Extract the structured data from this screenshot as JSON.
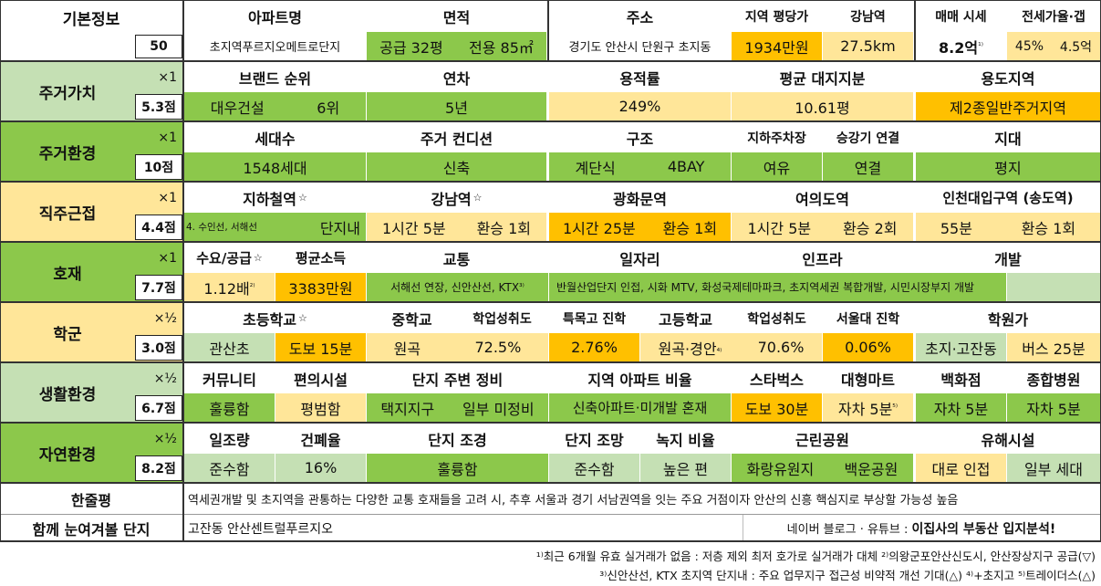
{
  "basic": {
    "label": "기본정보",
    "score": "50",
    "apt_header": "아파트명",
    "apt_name": "초지역푸르지오메트로단지",
    "area_header": "면적",
    "area_supply": "공급 32평",
    "area_private": "전용 85㎡",
    "addr_header": "주소",
    "addr_value": "경기도 안산시 단원구 초지동",
    "ppy_header": "지역 평당가",
    "ppy_value": "1934만원",
    "gangnam_header": "강남역",
    "gangnam_value": "27.5km",
    "price_header": "매매 시세",
    "price_value": "8.2억",
    "price_note": "¹⁾",
    "jeonse_header": "전세가율·갭",
    "jeonse_rate": "45%",
    "jeonse_gap": "4.5억"
  },
  "value": {
    "label": "주거가치",
    "mult": "×1",
    "score": "5.3점",
    "brand_header": "브랜드 순위",
    "brand_name": "대우건설",
    "brand_rank": "6위",
    "age_header": "연차",
    "age_value": "5년",
    "far_header": "용적률",
    "far_value": "249%",
    "land_header": "평균 대지지분",
    "land_value": "10.61평",
    "zone_header": "용도지역",
    "zone_value": "제2종일반주거지역"
  },
  "env": {
    "label": "주거환경",
    "mult": "×1",
    "score": "10점",
    "hh_header": "세대수",
    "hh_value": "1548세대",
    "cond_header": "주거 컨디션",
    "cond_value": "신축",
    "struct_header": "구조",
    "struct_a": "계단식",
    "struct_b": "4BAY",
    "park_header": "지하주차장",
    "park_value": "여유",
    "elev_header": "승강기 연결",
    "elev_value": "연결",
    "terrain_header": "지대",
    "terrain_value": "평지"
  },
  "commute": {
    "label": "직주근접",
    "mult": "×1",
    "score": "4.4점",
    "subway_header": "지하철역",
    "subway_lines": "4. 수인선, 서해선",
    "subway_value": "단지내",
    "gangnam_header": "강남역",
    "gangnam_time": "1시간 5분",
    "gangnam_transfer": "환승 1회",
    "gwanghwa_header": "광화문역",
    "gwanghwa_time": "1시간 25분",
    "gwanghwa_transfer": "환승 1회",
    "yeouido_header": "여의도역",
    "yeouido_time": "1시간 5분",
    "yeouido_transfer": "환승 2회",
    "incheon_header": "인천대입구역 (송도역)",
    "incheon_time": "55분",
    "incheon_transfer": "환승 1회"
  },
  "dev": {
    "label": "호재",
    "mult": "×1",
    "score": "7.7점",
    "supply_header": "수요/공급",
    "supply_value": "1.12배",
    "supply_note": "²⁾",
    "income_header": "평균소득",
    "income_value": "3383만원",
    "traffic_header": "교통",
    "traffic_value": "서해선 연장, 신안산선, KTX",
    "traffic_note": "³⁾",
    "jobs_header": "일자리",
    "jobs_value": "반월산업단지 인접, 시화 MTV, 화성국제테마파크, 초지역세권 복합개발, 시민시장부지 개발",
    "infra_header": "인프라",
    "devel_header": "개발"
  },
  "school": {
    "label": "학군",
    "mult": "×½",
    "score": "3.0점",
    "elem_header": "초등학교",
    "elem_name": "관산초",
    "elem_walk": "도보 15분",
    "mid_header": "중학교",
    "mid_name": "원곡",
    "mid_perf_header": "학업성취도",
    "mid_perf": "72.5%",
    "sci_header": "특목고 진학",
    "sci_value": "2.76%",
    "high_header": "고등학교",
    "high_name": "원곡·경안",
    "high_note": "⁴⁾",
    "high_perf_header": "학업성취도",
    "high_perf": "70.6%",
    "snu_header": "서울대 진학",
    "snu_value": "0.06%",
    "academy_header": "학원가",
    "academy_name": "초지·고잔동",
    "academy_bus": "버스 25분"
  },
  "life": {
    "label": "생활환경",
    "mult": "×½",
    "score": "6.7점",
    "comm_header": "커뮤니티",
    "comm_value": "훌륭함",
    "conv_header": "편의시설",
    "conv_value": "평범함",
    "around_header": "단지 주변 정비",
    "around_a": "택지지구",
    "around_b": "일부 미정비",
    "ratio_header": "지역 아파트 비율",
    "ratio_value": "신축아파트·미개발 혼재",
    "sb_header": "스타벅스",
    "sb_value": "도보 30분",
    "mart_header": "대형마트",
    "mart_value": "자차 5분",
    "mart_note": "⁵⁾",
    "dept_header": "백화점",
    "dept_value": "자차 5분",
    "hosp_header": "종합병원",
    "hosp_value": "자차 5분"
  },
  "nature": {
    "label": "자연환경",
    "mult": "×½",
    "score": "8.2점",
    "sun_header": "일조량",
    "sun_value": "준수함",
    "bcr_header": "건폐율",
    "bcr_value": "16%",
    "land_header": "단지 조경",
    "land_value": "훌륭함",
    "view_header": "단지 조망",
    "view_value": "준수함",
    "green_header": "녹지 비율",
    "green_value": "높은 편",
    "park_header": "근린공원",
    "park_a": "화랑유원지",
    "park_b": "백운공원",
    "harm_header": "유해시설",
    "harm_a": "대로 인접",
    "harm_b": "일부 세대"
  },
  "summary": {
    "label": "한줄평",
    "text": "역세권개발 및 초지역을 관통하는 다양한 교통 호재들을 고려 시, 추후 서울과 경기 서남권역을 잇는 주요 거점이자 안산의 신흥 핵심지로 부상할 가능성 높음",
    "related_label": "함께 눈여겨볼 단지",
    "related_value": "고잔동 안산센트럴푸르지오",
    "source_prefix": "네이버 블로그 · 유튜브 :",
    "source_name": "이집사의 부동산 입지분석!"
  },
  "footnotes": {
    "line1": "¹⁾최근 6개월 유효 실거래가 없음 : 저층 제외 최저 호가로 실거래가 대체 ²⁾의왕군포안산신도시, 안산장상지구 공급(▽)",
    "line2": "³⁾신안산선, KTX 초지역 단지내 : 주요 업무지구 접근성 비약적 개선 기대(△) ⁴⁾+초지고 ⁵⁾트레이더스(△)"
  },
  "colors": {
    "green": "#8cc84b",
    "light_green": "#c5e0b4",
    "yellow": "#ffe699",
    "orange": "#ffc000"
  },
  "icons": {
    "star": "star-icon"
  }
}
